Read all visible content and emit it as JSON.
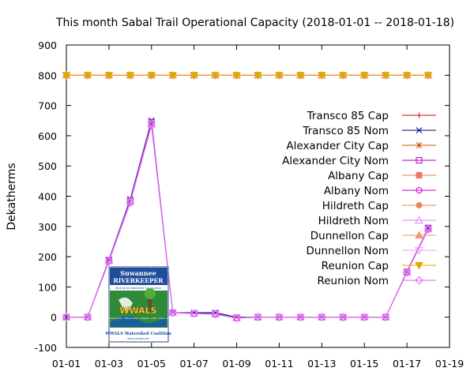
{
  "chart_data": {
    "type": "line",
    "title": "This month Sabal Trail Operational Capacity (2018-01-01 -- 2018-01-18)",
    "xlabel": "",
    "ylabel": "Dekatherms",
    "xlim": [
      "01-01",
      "01-19"
    ],
    "ylim": [
      -100,
      900
    ],
    "x_ticks": [
      "01-01",
      "01-03",
      "01-05",
      "01-07",
      "01-09",
      "01-11",
      "01-13",
      "01-15",
      "01-17",
      "01-19"
    ],
    "y_ticks": [
      -100,
      0,
      100,
      200,
      300,
      400,
      500,
      600,
      700,
      800,
      900
    ],
    "grid": false,
    "legend_position": "right",
    "x": [
      "01-01",
      "01-02",
      "01-03",
      "01-04",
      "01-05",
      "01-06",
      "01-07",
      "01-08",
      "01-09",
      "01-10",
      "01-11",
      "01-12",
      "01-13",
      "01-14",
      "01-15",
      "01-16",
      "01-17",
      "01-18"
    ],
    "series": [
      {
        "name": "Transco 85 Cap",
        "color": "#cc0000",
        "marker": "plus",
        "values": [
          800,
          800,
          800,
          800,
          800,
          800,
          800,
          800,
          800,
          800,
          800,
          800,
          800,
          800,
          800,
          800,
          800,
          800
        ]
      },
      {
        "name": "Transco 85 Nom",
        "color": "#000080",
        "marker": "cross",
        "values": [
          0,
          0,
          190,
          390,
          650,
          15,
          15,
          15,
          0,
          0,
          0,
          0,
          0,
          0,
          0,
          0,
          150,
          295
        ]
      },
      {
        "name": "Alexander City Cap",
        "color": "#cc5500",
        "marker": "star",
        "values": [
          800,
          800,
          800,
          800,
          800,
          800,
          800,
          800,
          800,
          800,
          800,
          800,
          800,
          800,
          800,
          800,
          800,
          800
        ]
      },
      {
        "name": "Alexander City Nom",
        "color": "#aa00cc",
        "marker": "square-open",
        "values": [
          0,
          0,
          188,
          385,
          645,
          15,
          12,
          12,
          -2,
          0,
          0,
          0,
          0,
          0,
          0,
          0,
          150,
          295
        ]
      },
      {
        "name": "Albany Cap",
        "color": "#ee7766",
        "marker": "square-filled",
        "values": [
          800,
          800,
          800,
          800,
          800,
          800,
          800,
          800,
          800,
          800,
          800,
          800,
          800,
          800,
          800,
          800,
          800,
          800
        ]
      },
      {
        "name": "Albany Nom",
        "color": "#cc00cc",
        "marker": "circle-open",
        "values": [
          0,
          0,
          187,
          383,
          640,
          15,
          12,
          10,
          -3,
          0,
          0,
          0,
          0,
          0,
          0,
          0,
          150,
          293
        ]
      },
      {
        "name": "Hildreth Cap",
        "color": "#ee8855",
        "marker": "circle-filled",
        "values": [
          800,
          800,
          800,
          800,
          800,
          800,
          800,
          800,
          800,
          800,
          800,
          800,
          800,
          800,
          800,
          800,
          800,
          800
        ]
      },
      {
        "name": "Hildreth Nom",
        "color": "#dd88ee",
        "marker": "triangle-open",
        "values": [
          0,
          0,
          186,
          382,
          638,
          15,
          12,
          10,
          -3,
          0,
          0,
          0,
          0,
          0,
          0,
          0,
          148,
          292
        ]
      },
      {
        "name": "Dunnellon Cap",
        "color": "#ee9977",
        "marker": "triangle-filled",
        "values": [
          800,
          800,
          800,
          800,
          800,
          800,
          800,
          800,
          800,
          800,
          800,
          800,
          800,
          800,
          800,
          800,
          800,
          800
        ]
      },
      {
        "name": "Dunnellon Nom",
        "color": "#ee99ee",
        "marker": "triangle-down-open",
        "values": [
          0,
          0,
          185,
          380,
          636,
          14,
          12,
          10,
          -3,
          0,
          0,
          0,
          0,
          0,
          0,
          0,
          148,
          291
        ]
      },
      {
        "name": "Reunion Cap",
        "color": "#ddaa00",
        "marker": "triangle-down-filled",
        "values": [
          800,
          800,
          800,
          800,
          800,
          800,
          800,
          800,
          800,
          800,
          800,
          800,
          800,
          800,
          800,
          800,
          800,
          800
        ]
      },
      {
        "name": "Reunion Nom",
        "color": "#dd66ee",
        "marker": "diamond-open",
        "values": [
          0,
          0,
          184,
          378,
          634,
          14,
          12,
          10,
          -3,
          0,
          0,
          0,
          0,
          0,
          0,
          0,
          148,
          290
        ]
      }
    ]
  },
  "logo": {
    "line1": "Suwannee",
    "line2": "RIVERKEEPER",
    "tagline": "Working for Watershed Conservation",
    "name": "WWALS",
    "towns": "Withlacoochee • Willacoochee • Alapaha • Little • Suwannee",
    "org": "WWALS Watershed Coalition",
    "url": "www.wwals.net"
  }
}
